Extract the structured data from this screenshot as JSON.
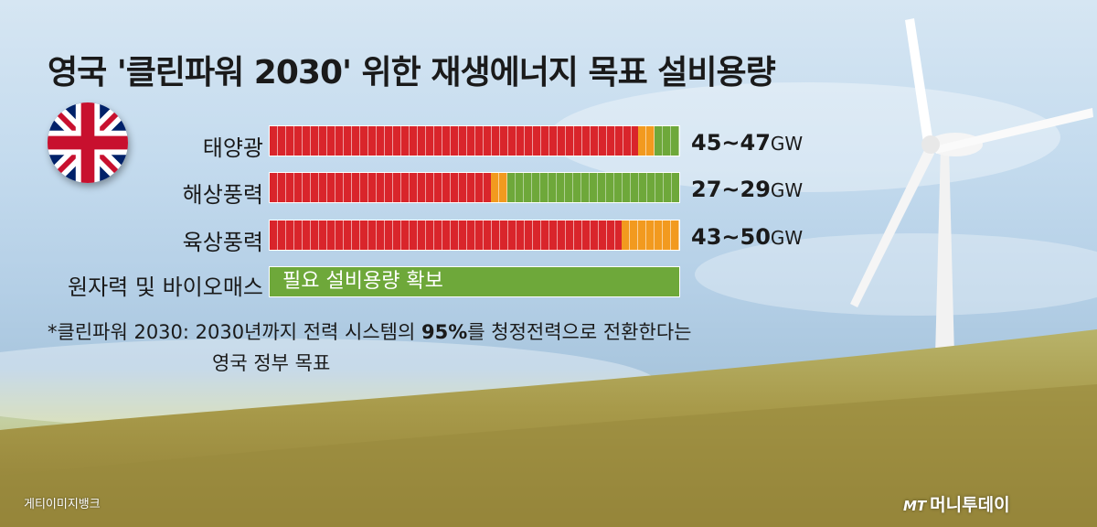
{
  "title": "영국 '클린파워 2030' 위한 재생에너지 목표 설비용량",
  "chart_data": {
    "type": "bar",
    "orientation": "horizontal",
    "categories": [
      "태양광",
      "해상풍력",
      "육상풍력"
    ],
    "unit": "GW",
    "series": [
      {
        "name": "",
        "values": [
          45,
          27,
          43
        ]
      },
      {
        "name": "",
        "values": [
          47,
          29,
          50
        ]
      }
    ],
    "value_labels": [
      "45~47GW",
      "27~29GW",
      "43~50GW"
    ],
    "extra_rows": [
      {
        "label": "원자력 및 바이오매스",
        "bar_text": "필요 설비용량 확보"
      }
    ],
    "colors": {
      "low": "#d9252b",
      "range": "#f29a1f",
      "remaining": "#6ea83a"
    }
  },
  "rows": [
    {
      "label": "태양광",
      "value": "45~47",
      "unit": "GW"
    },
    {
      "label": "해상풍력",
      "value": "27~29",
      "unit": "GW"
    },
    {
      "label": "육상풍력",
      "value": "43~50",
      "unit": "GW"
    }
  ],
  "full_row": {
    "label": "원자력 및 바이오매스",
    "bar_text": "필요 설비용량 확보"
  },
  "note": {
    "prefix": "*클린파워 2030:  2030년까지 전력 시스템의 ",
    "highlight": "95%",
    "suffix": "를 청정전력으로 전환한다는",
    "line2": "영국 정부 목표"
  },
  "credit": "게티이미지뱅크",
  "logo": {
    "mark": "MT",
    "text": "머니투데이"
  },
  "icons": {
    "flag": "uk-flag-icon",
    "turbine": "wind-turbine-icon"
  }
}
